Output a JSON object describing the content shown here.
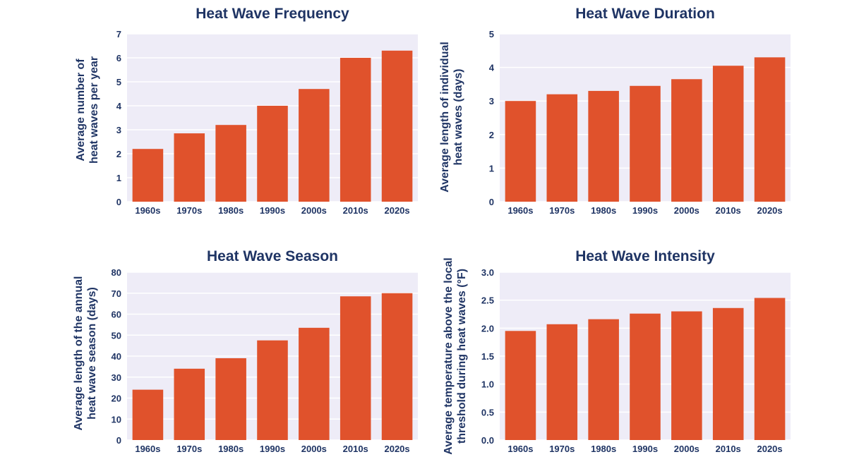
{
  "style": {
    "bar_color": "#e0522c",
    "plot_bg": "#eeecf7",
    "grid_color": "#ffffff",
    "text_color": "#1f3464"
  },
  "chart_data": [
    {
      "type": "bar",
      "title": "Heat Wave Frequency",
      "ylabel": "Average number of\nheat waves per year",
      "xlabel": "",
      "categories": [
        "1960s",
        "1970s",
        "1980s",
        "1990s",
        "2000s",
        "2010s",
        "2020s"
      ],
      "values": [
        2.2,
        2.85,
        3.2,
        4.0,
        4.7,
        6.0,
        6.3
      ],
      "ylim": [
        0,
        7
      ],
      "yticks": [
        "0",
        "1",
        "2",
        "3",
        "4",
        "5",
        "6",
        "7"
      ],
      "grid": true
    },
    {
      "type": "bar",
      "title": "Heat Wave Duration",
      "ylabel": "Average length of individual\nheat waves (days)",
      "xlabel": "",
      "categories": [
        "1960s",
        "1970s",
        "1980s",
        "1990s",
        "2000s",
        "2010s",
        "2020s"
      ],
      "values": [
        3.0,
        3.2,
        3.3,
        3.45,
        3.65,
        4.05,
        4.3
      ],
      "ylim": [
        0,
        5
      ],
      "yticks": [
        "0",
        "1",
        "2",
        "3",
        "4",
        "5"
      ],
      "grid": true
    },
    {
      "type": "bar",
      "title": "Heat Wave Season",
      "ylabel": "Average length of the annual\nheat wave season (days)",
      "xlabel": "",
      "categories": [
        "1960s",
        "1970s",
        "1980s",
        "1990s",
        "2000s",
        "2010s",
        "2020s"
      ],
      "values": [
        24,
        34,
        39,
        47.5,
        53.5,
        68.5,
        70
      ],
      "ylim": [
        0,
        80
      ],
      "yticks": [
        "0",
        "10",
        "20",
        "30",
        "40",
        "50",
        "60",
        "70",
        "80"
      ],
      "grid": true
    },
    {
      "type": "bar",
      "title": "Heat Wave Intensity",
      "ylabel": "Average temperature above the local\nthreshold during heat waves (°F)",
      "xlabel": "",
      "categories": [
        "1960s",
        "1970s",
        "1980s",
        "1990s",
        "2000s",
        "2010s",
        "2020s"
      ],
      "values": [
        1.95,
        2.07,
        2.16,
        2.26,
        2.3,
        2.36,
        2.54
      ],
      "ylim": [
        0,
        3.0
      ],
      "yticks": [
        "0.0",
        "0.5",
        "1.0",
        "1.5",
        "2.0",
        "2.5",
        "3.0"
      ],
      "grid": true
    }
  ]
}
